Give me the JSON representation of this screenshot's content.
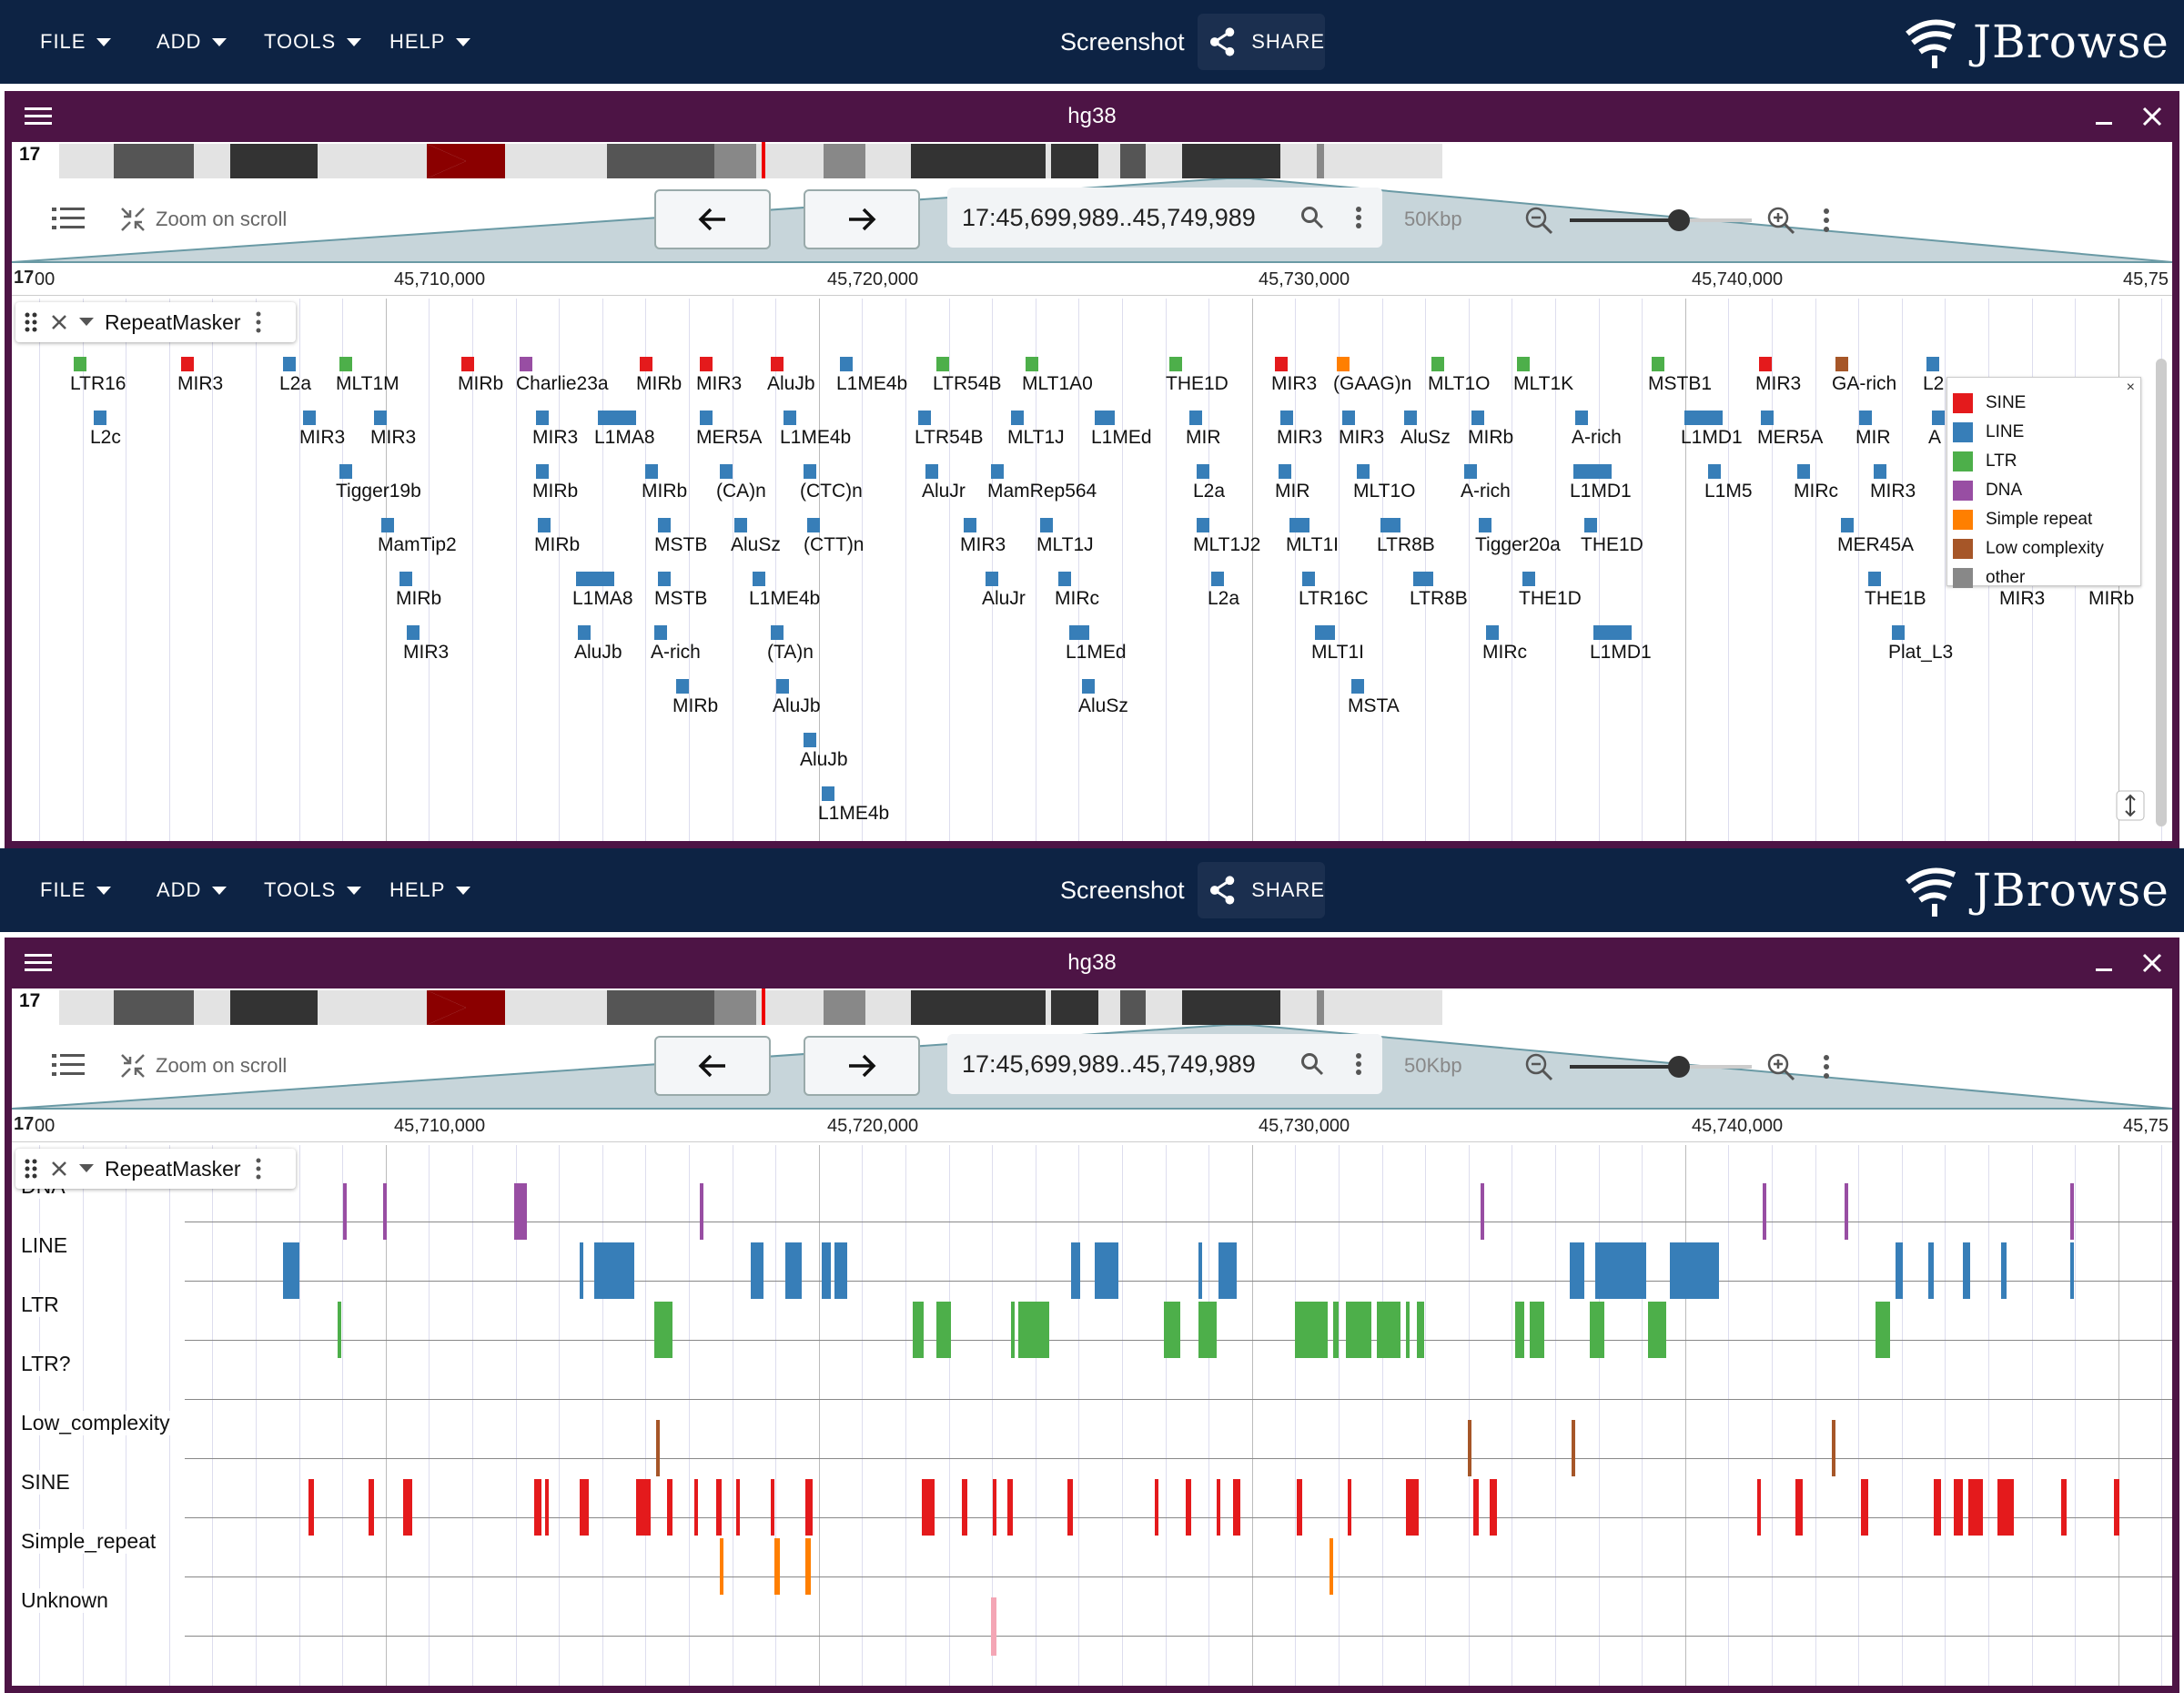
{
  "appbar": {
    "menus": [
      {
        "label": "FILE"
      },
      {
        "label": "ADD"
      },
      {
        "label": "TOOLS"
      },
      {
        "label": "HELP"
      }
    ],
    "screenshot_label": "Screenshot",
    "share_label": "SHARE",
    "logo_text": "JBrowse"
  },
  "view": {
    "assembly": "hg38",
    "chromosome": "17",
    "zoom_on_scroll_label": "Zoom on scroll",
    "location": "17:45,699,989..45,749,989",
    "scale_label": "50Kbp",
    "zoom_level": 0.6,
    "ruler_ticks": [
      "17",
      "00",
      "45,710,000",
      "45,720,000",
      "45,730,000",
      "45,740,000",
      "45,75"
    ]
  },
  "track": {
    "name": "RepeatMasker"
  },
  "legend": {
    "entries": [
      {
        "label": "SINE",
        "color": "#e41a1c"
      },
      {
        "label": "LINE",
        "color": "#377eb8"
      },
      {
        "label": "LTR",
        "color": "#4daf4a"
      },
      {
        "label": "DNA",
        "color": "#984ea3"
      },
      {
        "label": "Simple repeat",
        "color": "#ff7f00"
      },
      {
        "label": "Low complexity",
        "color": "#a65628"
      },
      {
        "label": "other",
        "color": "#888888"
      }
    ]
  },
  "features_top": {
    "rows": [
      [
        "LTR16",
        "MIR3",
        "L2a",
        "MLT1M",
        "MIRb",
        "Charlie23a",
        "MIRb",
        "MIR3",
        "AluJb",
        "L1ME4b",
        "LTR54B",
        "MLT1A0",
        "THE1D",
        "MIR3",
        "(GAAG)n",
        "MLT1O",
        "MLT1K",
        "MSTB1",
        "MIR3",
        "GA-rich",
        "L2"
      ],
      [
        "L2c",
        "MIR3",
        "MIR3",
        "MIR3",
        "L1MA8",
        "MER5A",
        "L1ME4b",
        "LTR54B",
        "MLT1J",
        "L1MEd",
        "MIR",
        "MIR3",
        "MIR3",
        "AluSz",
        "MIRb",
        "A-rich",
        "L1MD1",
        "MER5A",
        "MIR",
        "A"
      ],
      [
        "Tigger19b",
        "MIRb",
        "MIRb",
        "(CA)n",
        "(CTC)n",
        "AluJr",
        "MamRep564",
        "L2a",
        "MIR",
        "MLT1O",
        "A-rich",
        "L1MD1",
        "L1M5",
        "MIRc",
        "MIR3"
      ],
      [
        "MamTip2",
        "MIRb",
        "MSTB",
        "AluSz",
        "(CTT)n",
        "MIR3",
        "MLT1J",
        "MLT1J2",
        "MLT1I",
        "LTR8B",
        "Tigger20a",
        "THE1D",
        "MER45A"
      ],
      [
        "MIRb",
        "L1MA8",
        "MSTB",
        "L1ME4b",
        "AluJr",
        "MIRc",
        "L2a",
        "LTR16C",
        "LTR8B",
        "THE1D",
        "THE1B",
        "MIR3",
        "MIRb"
      ],
      [
        "MIR3",
        "AluJb",
        "A-rich",
        "(TA)n",
        "L1MEd",
        "MLT1I",
        "MIRc",
        "L1MD1",
        "Plat_L3"
      ],
      [
        "MIRb",
        "AluJb",
        "AluSz",
        "MSTA"
      ],
      [
        "AluJb"
      ],
      [
        "L1ME4b"
      ]
    ]
  },
  "features_bottom": {
    "categories": [
      "DNA",
      "LINE",
      "LTR",
      "LTR?",
      "Low_complexity",
      "SINE",
      "Simple_repeat",
      "Unknown"
    ]
  }
}
